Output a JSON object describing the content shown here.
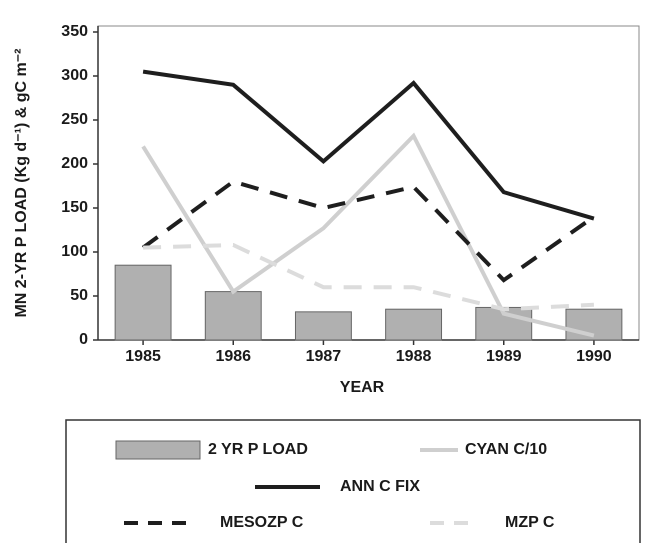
{
  "chart_data": {
    "type": "combo",
    "ylabel": "MN 2-YR P LOAD (Kg d⁻¹) & gC m⁻²",
    "xlabel": "YEAR",
    "categories": [
      "1985",
      "1986",
      "1987",
      "1988",
      "1989",
      "1990"
    ],
    "ylim": [
      0,
      350
    ],
    "yticks": [
      0,
      50,
      100,
      150,
      200,
      250,
      300,
      350
    ],
    "series": [
      {
        "name": "2 YR P LOAD",
        "kind": "bar",
        "color": "#b0b0b0",
        "values": [
          85,
          55,
          32,
          35,
          37,
          35
        ]
      },
      {
        "name": "CYAN C/10",
        "kind": "line",
        "dashed": false,
        "color": "#cfcfcf",
        "values": [
          220,
          55,
          127,
          232,
          30,
          5
        ]
      },
      {
        "name": "ANN C FIX",
        "kind": "line",
        "dashed": false,
        "color": "#1e1e1e",
        "values": [
          305,
          290,
          203,
          292,
          168,
          138
        ]
      },
      {
        "name": "MESOZP C",
        "kind": "line",
        "dashed": true,
        "color": "#1e1e1e",
        "values": [
          105,
          180,
          150,
          174,
          68,
          140
        ]
      },
      {
        "name": "MZP C",
        "kind": "line",
        "dashed": true,
        "color": "#dcdcdc",
        "values": [
          105,
          108,
          60,
          60,
          35,
          40
        ]
      }
    ]
  }
}
